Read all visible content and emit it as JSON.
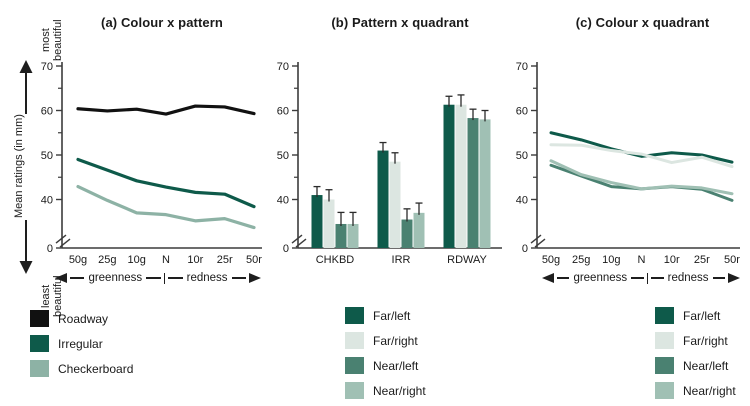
{
  "figure": {
    "y_axis": {
      "top_label": "most beautiful",
      "bottom_label": "least beautiful",
      "axis_label": "Mean ratings (in mm)"
    }
  },
  "chart_data": [
    {
      "id": "a",
      "type": "line",
      "title": "(a) Colour x pattern",
      "categories": [
        "50g",
        "25g",
        "10g",
        "N",
        "10r",
        "25r",
        "50r"
      ],
      "yticks": [
        0,
        40,
        50,
        60,
        70
      ],
      "minor_yticks": [
        45,
        55,
        65
      ],
      "ylim": [
        0,
        70
      ],
      "axis_break": true,
      "ylabel": "Mean ratings (in mm)",
      "arrow_axis": {
        "left_label": "greenness",
        "right_label": "redness"
      },
      "series": [
        {
          "name": "Roadway",
          "color": "#111111",
          "values": [
            60.4,
            59.9,
            60.3,
            59.2,
            61.0,
            60.8,
            59.3
          ]
        },
        {
          "name": "Irregular",
          "color": "#0E5A4A",
          "values": [
            49.0,
            46.6,
            44.2,
            42.8,
            41.6,
            41.2,
            38.4
          ]
        },
        {
          "name": "Checkerboard",
          "color": "#8DB2A5",
          "values": [
            42.9,
            39.8,
            37.0,
            36.6,
            35.2,
            35.7,
            33.7
          ]
        }
      ]
    },
    {
      "id": "b",
      "type": "bar",
      "title": "(b) Pattern x quadrant",
      "categories": [
        "CHKBD",
        "IRR",
        "RDWAY"
      ],
      "yticks": [
        0,
        40,
        50,
        60,
        70
      ],
      "minor_yticks": [
        45,
        55,
        65
      ],
      "ylim": [
        0,
        70
      ],
      "axis_break": true,
      "error_bars": true,
      "series": [
        {
          "name": "Far/left",
          "color": "#0E5A4A",
          "values": [
            41.0,
            51.0,
            61.3
          ],
          "errors": [
            1.9,
            1.8,
            1.9
          ]
        },
        {
          "name": "Far/right",
          "color": "#DCE6E1",
          "values": [
            40.0,
            48.5,
            61.3
          ],
          "errors": [
            2.2,
            2.0,
            2.2
          ]
        },
        {
          "name": "Near/left",
          "color": "#4A8171",
          "values": [
            34.5,
            35.5,
            58.3
          ],
          "errors": [
            2.6,
            2.4,
            2.0
          ]
        },
        {
          "name": "Near/right",
          "color": "#A0C0B4",
          "values": [
            34.5,
            37.0,
            58.0
          ],
          "errors": [
            2.6,
            2.2,
            2.0
          ]
        }
      ]
    },
    {
      "id": "c",
      "type": "line",
      "title": "(c) Colour x quadrant",
      "categories": [
        "50g",
        "25g",
        "10g",
        "N",
        "10r",
        "25r",
        "50r"
      ],
      "yticks": [
        0,
        40,
        50,
        60,
        70
      ],
      "minor_yticks": [
        45,
        55,
        65
      ],
      "ylim": [
        0,
        70
      ],
      "axis_break": true,
      "arrow_axis": {
        "left_label": "greenness",
        "right_label": "redness"
      },
      "series": [
        {
          "name": "Far/left",
          "color": "#0E5A4A",
          "values": [
            55.0,
            53.4,
            51.4,
            49.7,
            50.5,
            50.0,
            48.4
          ]
        },
        {
          "name": "Far/right",
          "color": "#DCE6E1",
          "values": [
            52.3,
            52.2,
            51.0,
            50.2,
            48.3,
            49.5,
            47.4
          ]
        },
        {
          "name": "Near/left",
          "color": "#4A8171",
          "values": [
            47.7,
            45.3,
            42.9,
            42.4,
            42.9,
            42.3,
            39.8
          ]
        },
        {
          "name": "Near/right",
          "color": "#A0C0B4",
          "values": [
            48.7,
            45.6,
            43.8,
            42.4,
            43.0,
            42.6,
            41.3
          ]
        }
      ]
    }
  ],
  "legends": {
    "a": [
      {
        "label": "Roadway",
        "color": "#111111"
      },
      {
        "label": "Irregular",
        "color": "#0E5A4A"
      },
      {
        "label": "Checkerboard",
        "color": "#8DB2A5"
      }
    ],
    "bc": [
      {
        "label": "Far/left",
        "color": "#0E5A4A"
      },
      {
        "label": "Far/right",
        "color": "#DCE6E1"
      },
      {
        "label": "Near/left",
        "color": "#4A8171"
      },
      {
        "label": "Near/right",
        "color": "#A0C0B4"
      }
    ]
  }
}
